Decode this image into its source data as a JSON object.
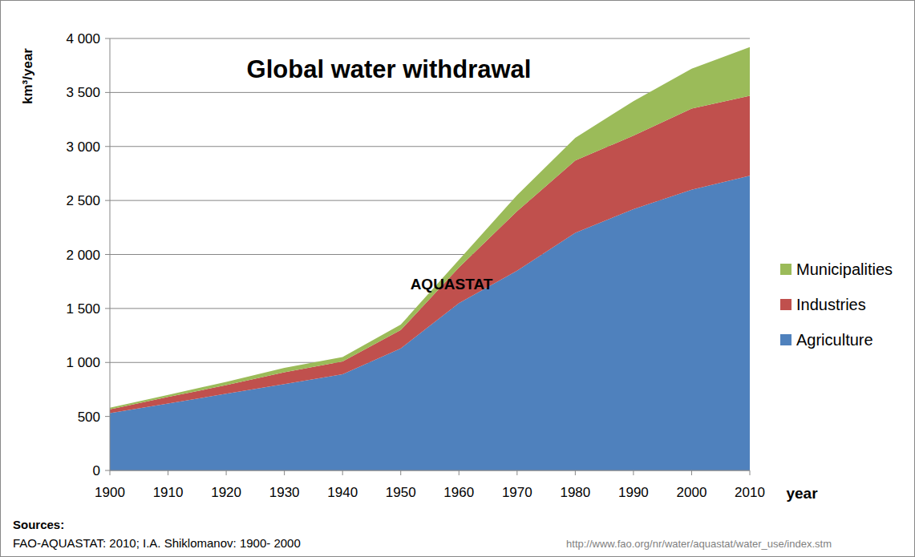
{
  "chart_data": {
    "type": "area",
    "title": "Global water withdrawal",
    "y_label": "km³/year",
    "x_label": "year",
    "annotations": [
      "AQUASTAT"
    ],
    "source_label": "Sources:",
    "source": "FAO-AQUASTAT: 2010; I.A. Shiklomanov: 1900- 2000",
    "url": "http://www.fao.org/nr/water/aquastat/water_use/index.stm",
    "x": [
      1900,
      1910,
      1920,
      1930,
      1940,
      1950,
      1960,
      1970,
      1980,
      1990,
      2000,
      2010
    ],
    "series": [
      {
        "name": "Agriculture",
        "color": "#4f81bd",
        "values": [
          530,
          620,
          710,
          800,
          890,
          1130,
          1550,
          1850,
          2200,
          2420,
          2600,
          2730
        ]
      },
      {
        "name": "Industries",
        "color": "#c0504d",
        "values": [
          35,
          60,
          80,
          110,
          120,
          170,
          330,
          550,
          670,
          680,
          750,
          740
        ]
      },
      {
        "name": "Municipalities",
        "color": "#9bbb59",
        "values": [
          15,
          20,
          30,
          40,
          40,
          50,
          70,
          150,
          210,
          320,
          370,
          450
        ]
      }
    ],
    "stacked": true,
    "grid": true,
    "legend": "right",
    "xlim": [
      1900,
      2010
    ],
    "xticks": [
      1900,
      1910,
      1920,
      1930,
      1940,
      1950,
      1960,
      1970,
      1980,
      1990,
      2000,
      2010
    ],
    "ylim": [
      0,
      4000
    ],
    "yticks": [
      0,
      500,
      {
        "value": 1000,
        "label": "1 000"
      },
      {
        "value": 1500,
        "label": "1 500"
      },
      {
        "value": 2000,
        "label": "2 000"
      },
      {
        "value": 2500,
        "label": "2 500"
      },
      {
        "value": 3000,
        "label": "3 000"
      },
      {
        "value": 3500,
        "label": "3 500"
      },
      {
        "value": 4000,
        "label": "4 000"
      }
    ]
  }
}
